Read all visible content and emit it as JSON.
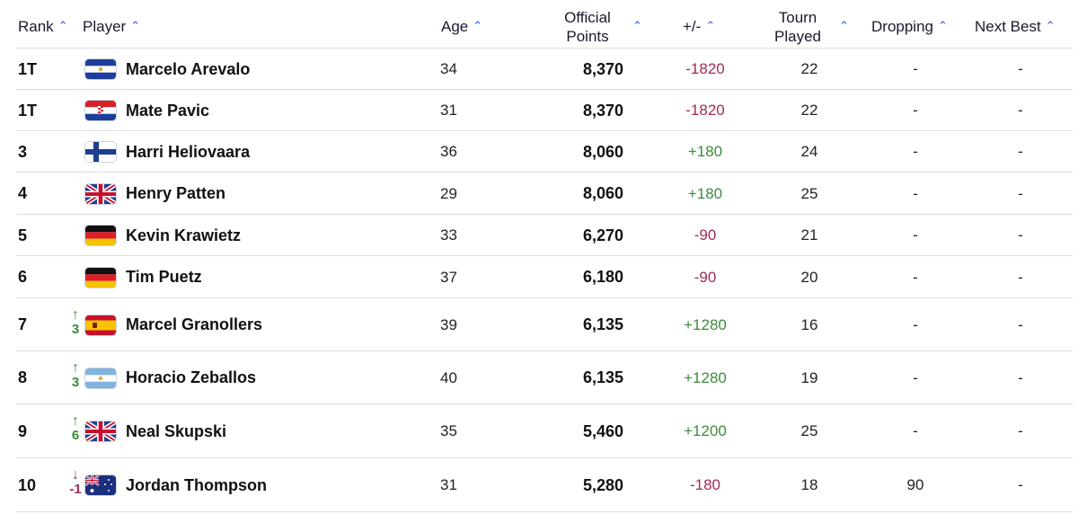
{
  "header": {
    "rank": "Rank",
    "player": "Player",
    "age": "Age",
    "points_line1": "Official",
    "points_line2": "Points",
    "plusminus": "+/-",
    "played_line1": "Tourn",
    "played_line2": "Played",
    "dropping": "Dropping",
    "next_best": "Next Best",
    "sort_icon": "chevron-up-icon"
  },
  "colors": {
    "accent": "#2c56e8",
    "negative": "#a52a5a",
    "positive": "#3c8c3c"
  },
  "rows": [
    {
      "rank": "1T",
      "movement": "",
      "move_dir": "",
      "flag": "el-salvador",
      "name": "Marcelo Arevalo",
      "age": "34",
      "points": "8,370",
      "plusminus": "-1820",
      "played": "22",
      "dropping": "-",
      "next_best": "-"
    },
    {
      "rank": "1T",
      "movement": "",
      "move_dir": "",
      "flag": "croatia",
      "name": "Mate Pavic",
      "age": "31",
      "points": "8,370",
      "plusminus": "-1820",
      "played": "22",
      "dropping": "-",
      "next_best": "-"
    },
    {
      "rank": "3",
      "movement": "",
      "move_dir": "",
      "flag": "finland",
      "name": "Harri Heliovaara",
      "age": "36",
      "points": "8,060",
      "plusminus": "+180",
      "played": "24",
      "dropping": "-",
      "next_best": "-"
    },
    {
      "rank": "4",
      "movement": "",
      "move_dir": "",
      "flag": "great-britain",
      "name": "Henry Patten",
      "age": "29",
      "points": "8,060",
      "plusminus": "+180",
      "played": "25",
      "dropping": "-",
      "next_best": "-"
    },
    {
      "rank": "5",
      "movement": "",
      "move_dir": "",
      "flag": "germany",
      "name": "Kevin Krawietz",
      "age": "33",
      "points": "6,270",
      "plusminus": "-90",
      "played": "21",
      "dropping": "-",
      "next_best": "-"
    },
    {
      "rank": "6",
      "movement": "",
      "move_dir": "",
      "flag": "germany",
      "name": "Tim Puetz",
      "age": "37",
      "points": "6,180",
      "plusminus": "-90",
      "played": "20",
      "dropping": "-",
      "next_best": "-"
    },
    {
      "rank": "7",
      "movement": "3",
      "move_dir": "up",
      "flag": "spain",
      "name": "Marcel Granollers",
      "age": "39",
      "points": "6,135",
      "plusminus": "+1280",
      "played": "16",
      "dropping": "-",
      "next_best": "-"
    },
    {
      "rank": "8",
      "movement": "3",
      "move_dir": "up",
      "flag": "argentina",
      "name": "Horacio Zeballos",
      "age": "40",
      "points": "6,135",
      "plusminus": "+1280",
      "played": "19",
      "dropping": "-",
      "next_best": "-"
    },
    {
      "rank": "9",
      "movement": "6",
      "move_dir": "up",
      "flag": "great-britain",
      "name": "Neal Skupski",
      "age": "35",
      "points": "5,460",
      "plusminus": "+1200",
      "played": "25",
      "dropping": "-",
      "next_best": "-"
    },
    {
      "rank": "10",
      "movement": "-1",
      "move_dir": "down",
      "flag": "australia",
      "name": "Jordan Thompson",
      "age": "31",
      "points": "5,280",
      "plusminus": "-180",
      "played": "18",
      "dropping": "90",
      "next_best": "-"
    }
  ]
}
